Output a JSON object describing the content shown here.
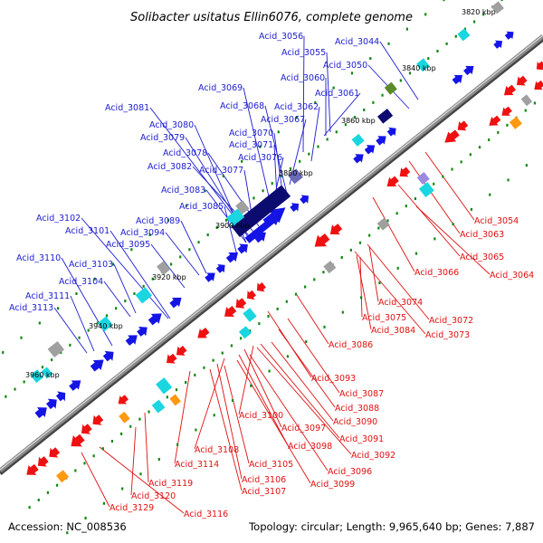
{
  "header": {
    "title": "Solibacter usitatus Ellin6076, complete genome"
  },
  "footer": {
    "accession": "Accession: NC_008536",
    "summary": "Topology: circular; Length: 9,965,640 bp; Genes: 7,887"
  },
  "kbp_labels": [
    "3820 kbp",
    "3840 kbp",
    "3860 kbp",
    "3880 kbp",
    "3900 kbp",
    "3920 kbp",
    "3940 kbp",
    "3960 kbp"
  ],
  "left_labels": [
    "Acid_3056",
    "Acid_3044",
    "Acid_3055",
    "Acid_3050",
    "Acid_3060",
    "Acid_3069",
    "Acid_3061",
    "Acid_3081",
    "Acid_3068",
    "Acid_3062",
    "Acid_3080",
    "Acid_3067",
    "Acid_3079",
    "Acid_3070",
    "Acid_3078",
    "Acid_3071",
    "Acid_3076",
    "Acid_3082",
    "Acid_3077",
    "Acid_3083",
    "Acid_3085",
    "Acid_3102",
    "Acid_3089",
    "Acid_3101",
    "Acid_3094",
    "Acid_3095",
    "Acid_3110",
    "Acid_3103",
    "Acid_3104",
    "Acid_3111",
    "Acid_3113"
  ],
  "right_labels": [
    "Acid_3054",
    "Acid_3063",
    "Acid_3065",
    "Acid_3066",
    "Acid_3064",
    "Acid_3074",
    "Acid_3072",
    "Acid_3075",
    "Acid_3084",
    "Acid_3073",
    "Acid_3086",
    "Acid_3093",
    "Acid_3087",
    "Acid_3088",
    "Acid_3100",
    "Acid_3090",
    "Acid_3097",
    "Acid_3091",
    "Acid_3098",
    "Acid_3108",
    "Acid_3092",
    "Acid_3114",
    "Acid_3105",
    "Acid_3096",
    "Acid_3106",
    "Acid_3099",
    "Acid_3119",
    "Acid_3107",
    "Acid_3120",
    "Acid_3129",
    "Acid_3116"
  ],
  "colors": {
    "forward": "#1414e6",
    "reverse": "#ee1111",
    "backbone": "#8a8a8a",
    "left_label": "#1c1cd0",
    "right_label": "#e01010",
    "tick": "#118811",
    "cyan": "#19d6e0",
    "navy": "#0b0b70",
    "gray": "#a0a0a0",
    "orange": "#ff9910"
  }
}
